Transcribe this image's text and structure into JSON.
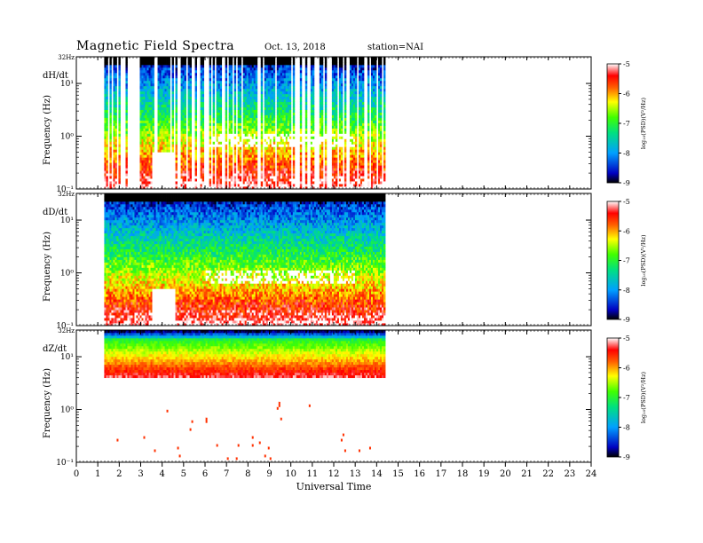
{
  "header": {
    "title": "Magnetic  Field  Spectra",
    "date": "Oct. 13, 2018",
    "station": "station=NAI"
  },
  "chart_data": [
    {
      "type": "heatmap",
      "panel_label": "dH/dt",
      "ylabel": "Frequency  (Hz)",
      "top_label": "32Hz",
      "ytick_labels": [
        "10¹",
        "10⁰",
        "10⁻¹"
      ],
      "ytick_values": [
        10,
        1,
        0.1
      ],
      "ylim": [
        0.1,
        32
      ],
      "yscale": "log",
      "xlim": [
        0,
        24
      ],
      "data_start_hour": 1.3,
      "data_end_hour": 14.4,
      "colorbar": {
        "label": "log₁₀(PSD)(V²/Hz)",
        "ticks": [
          "-5",
          "-6",
          "-7",
          "-8",
          "-9"
        ],
        "range": [
          -9,
          -5
        ]
      }
    },
    {
      "type": "heatmap",
      "panel_label": "dD/dt",
      "ylabel": "Frequency  (Hz)",
      "top_label": "32Hz",
      "ytick_labels": [
        "10¹",
        "10⁰",
        "10⁻¹"
      ],
      "ytick_values": [
        10,
        1,
        0.1
      ],
      "ylim": [
        0.1,
        32
      ],
      "yscale": "log",
      "xlim": [
        0,
        24
      ],
      "data_start_hour": 1.3,
      "data_end_hour": 14.4,
      "colorbar": {
        "label": "log₁₀(PSD)(V²/Hz)",
        "ticks": [
          "-5",
          "-6",
          "-7",
          "-8",
          "-9"
        ],
        "range": [
          -9,
          -5
        ]
      }
    },
    {
      "type": "heatmap",
      "panel_label": "dZ/dt",
      "ylabel": "Frequency  (Hz)",
      "top_label": "32Hz",
      "ytick_labels": [
        "10¹",
        "10⁰",
        "10⁻¹"
      ],
      "ytick_values": [
        10,
        1,
        0.1
      ],
      "ylim": [
        0.1,
        32
      ],
      "yscale": "log",
      "xlim": [
        0,
        24
      ],
      "data_start_hour": 1.3,
      "data_end_hour": 14.4,
      "xlabel": "Universal Time",
      "xtick_labels": [
        "0",
        "1",
        "2",
        "3",
        "4",
        "5",
        "6",
        "7",
        "8",
        "9",
        "10",
        "11",
        "12",
        "13",
        "14",
        "15",
        "16",
        "17",
        "18",
        "19",
        "20",
        "21",
        "22",
        "23",
        "24"
      ],
      "colorbar": {
        "label": "log₁₀(PSD)(V²/Hz)",
        "ticks": [
          "-5",
          "-6",
          "-7",
          "-8",
          "-9"
        ],
        "range": [
          -9,
          -5
        ]
      }
    }
  ]
}
